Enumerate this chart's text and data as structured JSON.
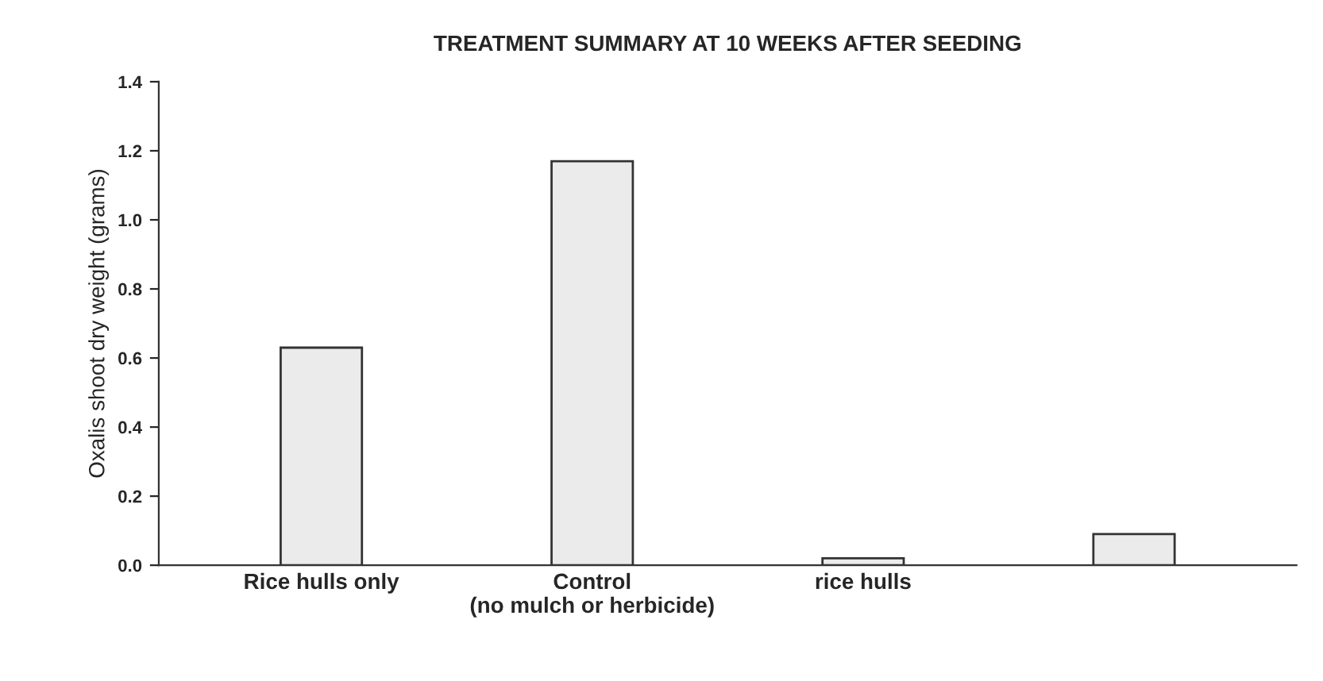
{
  "chart_data": {
    "type": "bar",
    "title": "TREATMENT SUMMARY AT 10 WEEKS AFTER SEEDING",
    "ylabel": "Oxalis shoot dry weight (grams)",
    "categories": [
      "Rice hulls only",
      "Control\n(no mulch or herbicide)",
      "rice hulls",
      null
    ],
    "values": [
      0.63,
      1.17,
      0.02,
      0.09
    ],
    "color": "#ebebeb",
    "ylim": [
      0,
      1.4
    ],
    "yticks": [
      {
        "value": 0,
        "label": "0.0"
      },
      0.2,
      0.4,
      0.6,
      0.8,
      {
        "value": 1,
        "label": "1.0"
      },
      1.2,
      1.4
    ],
    "grid": false,
    "legend": false
  }
}
